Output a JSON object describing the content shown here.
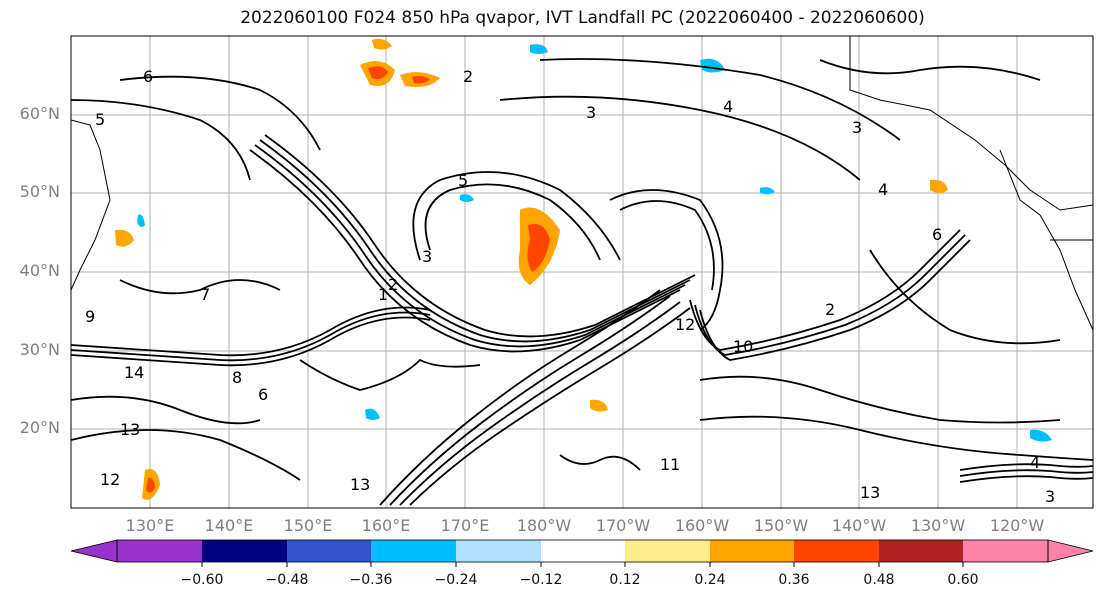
{
  "title": "2022060100 F024 850 hPa qvapor, IVT Landfall PC (2022060400 - 2022060600)",
  "map": {
    "lat_labels": [
      "60°N",
      "50°N",
      "40°N",
      "30°N",
      "20°N"
    ],
    "lon_labels": [
      "130°E",
      "140°E",
      "150°E",
      "160°E",
      "170°E",
      "180°W",
      "170°W",
      "160°W",
      "150°W",
      "140°W",
      "130°W",
      "120°W"
    ],
    "contour_labels": [
      "6",
      "5",
      "3",
      "4",
      "2",
      "1",
      "5",
      "3",
      "2",
      "3",
      "6",
      "4",
      "2",
      "13",
      "10",
      "12",
      "8",
      "11",
      "13",
      "12",
      "7",
      "9",
      "6",
      "14",
      "13",
      "4",
      "3"
    ],
    "contour_color": "#000000"
  },
  "colorbar": {
    "ticks": [
      "−0.60",
      "−0.48",
      "−0.36",
      "−0.24",
      "−0.12",
      "0.12",
      "0.24",
      "0.36",
      "0.48",
      "0.60"
    ],
    "colors": [
      "#9932cc",
      "#000080",
      "#3355cc",
      "#00bfff",
      "#b0e2ff",
      "#ffffff",
      "#ffec8b",
      "#ffa500",
      "#ff4500",
      "#b22222",
      "#ff82ab"
    ]
  }
}
